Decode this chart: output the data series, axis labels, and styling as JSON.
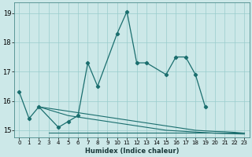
{
  "xlabel": "Humidex (Indice chaleur)",
  "bg_color": "#cce8e8",
  "grid_color": "#99cccc",
  "line_color": "#1a6e6e",
  "xlim": [
    -0.5,
    23.5
  ],
  "ylim": [
    14.75,
    19.35
  ],
  "yticks": [
    15,
    16,
    17,
    18,
    19
  ],
  "xticks": [
    0,
    1,
    2,
    3,
    4,
    5,
    6,
    7,
    8,
    9,
    10,
    11,
    12,
    13,
    14,
    15,
    16,
    17,
    18,
    19,
    20,
    21,
    22,
    23
  ],
  "main_x": [
    0,
    1,
    2,
    4,
    5,
    6,
    7,
    8,
    10,
    11,
    12,
    13,
    15,
    16,
    17,
    18,
    19
  ],
  "main_y": [
    16.3,
    15.4,
    15.8,
    15.1,
    15.3,
    15.5,
    17.3,
    16.5,
    18.3,
    19.05,
    17.3,
    17.3,
    16.9,
    17.5,
    17.5,
    16.9,
    15.8
  ],
  "line2_x": [
    2,
    3,
    4,
    5,
    6,
    7,
    8,
    9,
    10,
    11,
    12,
    13,
    14,
    15,
    16,
    17,
    18,
    19,
    20,
    21,
    22,
    23
  ],
  "line2_y": [
    15.8,
    15.75,
    15.7,
    15.65,
    15.6,
    15.55,
    15.5,
    15.45,
    15.4,
    15.35,
    15.3,
    15.25,
    15.2,
    15.15,
    15.1,
    15.05,
    15.0,
    14.98,
    14.96,
    14.95,
    14.93,
    14.9
  ],
  "line3_x": [
    3,
    4,
    5,
    6,
    7,
    8,
    9,
    10,
    11,
    12,
    13,
    14,
    15,
    16,
    17,
    18,
    19,
    20,
    21,
    22,
    23
  ],
  "line3_y": [
    14.93,
    14.93,
    14.93,
    14.93,
    14.93,
    14.93,
    14.93,
    14.93,
    14.93,
    14.93,
    14.93,
    14.93,
    14.93,
    14.93,
    14.93,
    14.93,
    14.93,
    14.93,
    14.93,
    14.93,
    14.93
  ],
  "line4_x": [
    2,
    3,
    4,
    5,
    6,
    7,
    8,
    9,
    10,
    11,
    12,
    13,
    14,
    15,
    16,
    17,
    18,
    19,
    20,
    21,
    22,
    23
  ],
  "line4_y": [
    15.8,
    15.7,
    15.6,
    15.5,
    15.45,
    15.4,
    15.35,
    15.3,
    15.25,
    15.2,
    15.15,
    15.1,
    15.05,
    15.0,
    14.98,
    14.96,
    14.94,
    14.92,
    14.9,
    14.89,
    14.88,
    14.87
  ]
}
